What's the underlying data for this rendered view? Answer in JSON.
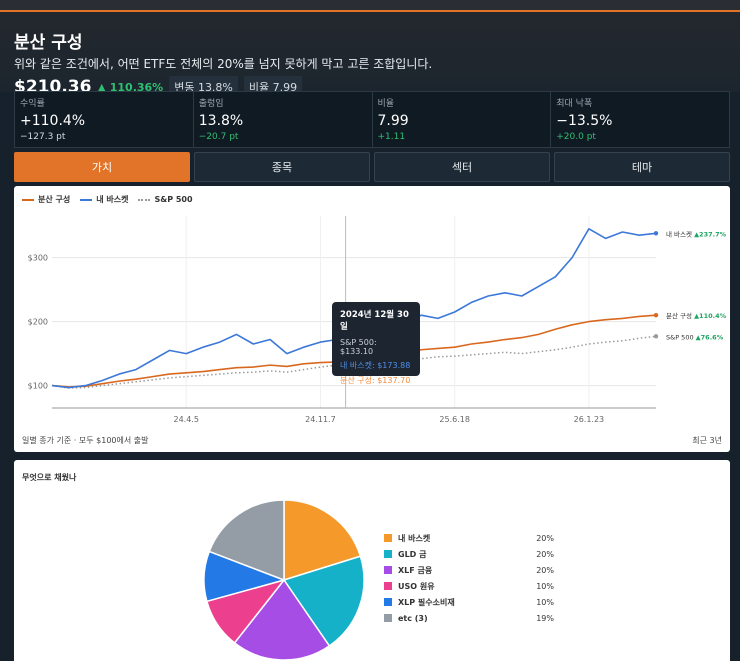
{
  "header": {
    "title": "분산 구성",
    "subtitle": "위와 같은 조건에서, 어떤 ETF도 전체의 20%를 넘지 못하게 막고 고른 조합입니다.",
    "price": "$210.36",
    "change": "▲ 110.36%",
    "chips": [
      "변동 13.8%",
      "비율 7.99"
    ]
  },
  "metrics": [
    {
      "label": "수익률",
      "value": "+110.4%",
      "sub": "−127.3 pt",
      "sub_color": "#d6dbe0"
    },
    {
      "label": "출렁임",
      "value": "13.8%",
      "sub": "−20.7 pt",
      "sub_color": "#2fbf71"
    },
    {
      "label": "비율",
      "value": "7.99",
      "sub": "+1.11",
      "sub_color": "#2fbf71"
    },
    {
      "label": "최대 낙폭",
      "value": "−13.5%",
      "sub": "+20.0 pt",
      "sub_color": "#2fbf71"
    }
  ],
  "tabs": [
    {
      "label": "가치",
      "active": true
    },
    {
      "label": "종목",
      "active": false
    },
    {
      "label": "섹터",
      "active": false
    },
    {
      "label": "테마",
      "active": false
    }
  ],
  "chart": {
    "legend": [
      "분산 구성",
      "내 바스켓",
      "S&P 500"
    ],
    "footer_left": "일별 종가 기준 · 모두 $100에서 출발",
    "footer_right": "최근 3년",
    "tooltip": {
      "date": "2024년 12월 30일",
      "rows": [
        "S&P 500: $133.10",
        "내 바스켓: $173.88",
        "분산 구성: $137.70"
      ]
    },
    "end_labels": [
      {
        "name": "내 바스켓",
        "change": "▲237.7%"
      },
      {
        "name": "분산 구성",
        "change": "▲110.4%"
      },
      {
        "name": "S&P 500",
        "change": "▲76.6%"
      }
    ]
  },
  "chart_data": {
    "type": "line",
    "x_ticks": [
      "24.4.5",
      "24.11.7",
      "25.6.18",
      "26.1.23"
    ],
    "y_ticks": [
      "$100",
      "$200",
      "$300"
    ],
    "ylim": [
      65,
      365
    ],
    "x_range": [
      0,
      36
    ],
    "x_tick_positions": [
      8,
      16,
      24,
      32
    ],
    "hover_x": 17.5,
    "series": [
      {
        "name": "내 바스켓",
        "color": "#3b78d8",
        "style": "solid",
        "x": [
          0,
          1,
          2,
          3,
          4,
          5,
          6,
          7,
          8,
          9,
          10,
          11,
          12,
          13,
          14,
          15,
          16,
          17,
          17.5,
          18,
          19,
          20,
          21,
          22,
          23,
          24,
          25,
          26,
          27,
          28,
          29,
          30,
          31,
          32,
          33,
          34,
          35,
          36
        ],
        "y": [
          100,
          97,
          100,
          108,
          118,
          125,
          140,
          155,
          150,
          160,
          168,
          180,
          165,
          172,
          150,
          160,
          168,
          172,
          174,
          180,
          185,
          190,
          195,
          210,
          205,
          215,
          230,
          240,
          245,
          240,
          255,
          270,
          300,
          345,
          330,
          340,
          335,
          338
        ]
      },
      {
        "name": "분산 구성",
        "color": "#d9681f",
        "style": "solid",
        "x": [
          0,
          1,
          2,
          3,
          4,
          5,
          6,
          7,
          8,
          9,
          10,
          11,
          12,
          13,
          14,
          15,
          16,
          17,
          17.5,
          18,
          19,
          20,
          21,
          22,
          23,
          24,
          25,
          26,
          27,
          28,
          29,
          30,
          31,
          32,
          33,
          34,
          35,
          36
        ],
        "y": [
          100,
          98,
          99,
          103,
          107,
          110,
          114,
          118,
          120,
          122,
          125,
          128,
          129,
          132,
          130,
          134,
          136,
          137,
          138,
          140,
          144,
          148,
          152,
          156,
          158,
          160,
          165,
          168,
          172,
          175,
          180,
          188,
          195,
          200,
          203,
          205,
          208,
          210
        ]
      },
      {
        "name": "S&P 500",
        "color": "#9a9a9a",
        "style": "dotted",
        "x": [
          0,
          1,
          2,
          3,
          4,
          5,
          6,
          7,
          8,
          9,
          10,
          11,
          12,
          13,
          14,
          15,
          16,
          17,
          17.5,
          18,
          19,
          20,
          21,
          22,
          23,
          24,
          25,
          26,
          27,
          28,
          29,
          30,
          31,
          32,
          33,
          34,
          35,
          36
        ],
        "y": [
          100,
          96,
          97,
          100,
          103,
          106,
          109,
          112,
          114,
          116,
          118,
          120,
          121,
          123,
          121,
          125,
          129,
          132,
          133,
          134,
          136,
          138,
          140,
          142,
          145,
          146,
          148,
          150,
          152,
          150,
          153,
          156,
          160,
          165,
          168,
          170,
          174,
          177
        ]
      }
    ]
  },
  "pie": {
    "title": "무엇으로 채웠나",
    "slices": [
      {
        "label": "내 바스켓",
        "value": 20,
        "display": "20%",
        "color": "#f59a2a"
      },
      {
        "label": "GLD 금",
        "value": 20,
        "display": "20%",
        "color": "#14b1c9"
      },
      {
        "label": "XLF 금융",
        "value": 20,
        "display": "20%",
        "color": "#a64de6"
      },
      {
        "label": "USO 원유",
        "value": 10,
        "display": "10%",
        "color": "#ec3f8e"
      },
      {
        "label": "XLP 필수소비재",
        "value": 10,
        "display": "10%",
        "color": "#2379e6"
      },
      {
        "label": "etc (3)",
        "value": 19,
        "display": "19%",
        "color": "#949ca5"
      }
    ]
  }
}
